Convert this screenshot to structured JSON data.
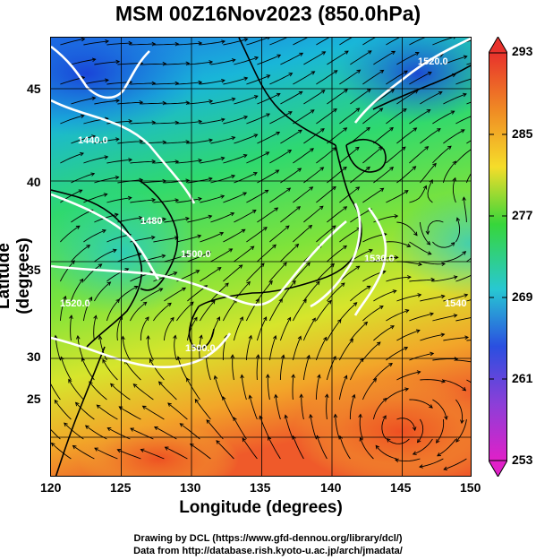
{
  "title": "MSM 00Z16Nov2023 (850.0hPa)",
  "x_axis": {
    "label": "Longitude (degrees)",
    "ticks": [
      "120",
      "125",
      "130",
      "135",
      "140",
      "145",
      "150"
    ]
  },
  "y_axis": {
    "label": "Latitude  (degrees)",
    "ticks": [
      "25",
      "30",
      "35",
      "40",
      "45"
    ]
  },
  "colorbar": {
    "labels": [
      "293",
      "285",
      "277",
      "269",
      "261",
      "253"
    ],
    "colors": [
      "#e8322c",
      "#f08a24",
      "#f5dd2a",
      "#37d63a",
      "#28c8d2",
      "#2a4fe0",
      "#8b3fd8",
      "#e020c8"
    ]
  },
  "contours": [
    {
      "label": "1440.0"
    },
    {
      "label": "1480"
    },
    {
      "label": "1500.0"
    },
    {
      "label": "1520.0"
    },
    {
      "label": "1530.0"
    },
    {
      "label": "1520.0"
    },
    {
      "label": "1500.0"
    },
    {
      "label": "1540"
    }
  ],
  "credits": {
    "line1": "Drawing by DCL (https://www.gfd-dennou.org/library/dcl/)",
    "line2": "Data from http://database.rish.kyoto-u.ac.jp/arch/jmadata/"
  }
}
